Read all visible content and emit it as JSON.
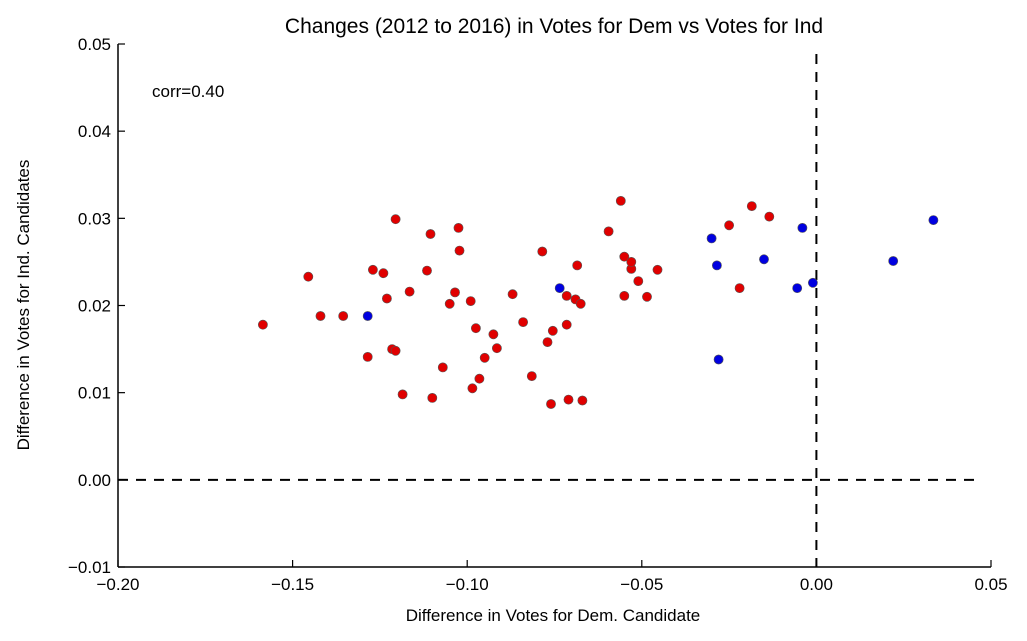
{
  "chart_data": {
    "type": "scatter",
    "title": "Changes (2012 to 2016) in Votes for Dem vs Votes for Ind",
    "xlabel": "Difference in Votes for Dem. Candidate",
    "ylabel": "Difference in Votes for Ind. Candidates",
    "xlim": [
      -0.2,
      0.05
    ],
    "ylim": [
      -0.01,
      0.05
    ],
    "xticks": [
      -0.2,
      -0.15,
      -0.1,
      -0.05,
      0.0,
      0.05
    ],
    "xtick_labels": [
      "−0.20",
      "−0.15",
      "−0.10",
      "−0.05",
      "0.00",
      "0.05"
    ],
    "yticks": [
      -0.01,
      0.0,
      0.01,
      0.02,
      0.03,
      0.04,
      0.05
    ],
    "ytick_labels": [
      "−0.01",
      "0.00",
      "0.01",
      "0.02",
      "0.03",
      "0.04",
      "0.05"
    ],
    "annotation": "corr=0.40",
    "reference_lines": {
      "x": 0.0,
      "y": 0.0,
      "style": "dashed"
    },
    "grid": false,
    "series": [
      {
        "color": "#e00000",
        "points": [
          [
            -0.1585,
            0.0178
          ],
          [
            -0.1455,
            0.0233
          ],
          [
            -0.142,
            0.0188
          ],
          [
            -0.1355,
            0.0188
          ],
          [
            -0.1285,
            0.0141
          ],
          [
            -0.127,
            0.0241
          ],
          [
            -0.124,
            0.0237
          ],
          [
            -0.123,
            0.0208
          ],
          [
            -0.1215,
            0.015
          ],
          [
            -0.1205,
            0.0299
          ],
          [
            -0.1205,
            0.0148
          ],
          [
            -0.1185,
            0.0098
          ],
          [
            -0.1165,
            0.0216
          ],
          [
            -0.1115,
            0.024
          ],
          [
            -0.1105,
            0.0282
          ],
          [
            -0.11,
            0.0094
          ],
          [
            -0.107,
            0.0129
          ],
          [
            -0.105,
            0.0202
          ],
          [
            -0.1035,
            0.0215
          ],
          [
            -0.1025,
            0.0289
          ],
          [
            -0.1022,
            0.0263
          ],
          [
            -0.099,
            0.0205
          ],
          [
            -0.0985,
            0.0105
          ],
          [
            -0.0975,
            0.0174
          ],
          [
            -0.0965,
            0.0116
          ],
          [
            -0.095,
            0.014
          ],
          [
            -0.0925,
            0.0167
          ],
          [
            -0.0915,
            0.0151
          ],
          [
            -0.087,
            0.0213
          ],
          [
            -0.084,
            0.0181
          ],
          [
            -0.0815,
            0.0119
          ],
          [
            -0.0785,
            0.0262
          ],
          [
            -0.077,
            0.0158
          ],
          [
            -0.076,
            0.0087
          ],
          [
            -0.0755,
            0.0171
          ],
          [
            -0.0715,
            0.0211
          ],
          [
            -0.0715,
            0.0178
          ],
          [
            -0.071,
            0.0092
          ],
          [
            -0.069,
            0.0207
          ],
          [
            -0.0685,
            0.0246
          ],
          [
            -0.0675,
            0.0202
          ],
          [
            -0.067,
            0.0091
          ],
          [
            -0.0595,
            0.0285
          ],
          [
            -0.056,
            0.032
          ],
          [
            -0.055,
            0.0256
          ],
          [
            -0.055,
            0.0211
          ],
          [
            -0.053,
            0.0242
          ],
          [
            -0.053,
            0.025
          ],
          [
            -0.051,
            0.0228
          ],
          [
            -0.0485,
            0.021
          ],
          [
            -0.0455,
            0.0241
          ],
          [
            -0.025,
            0.0292
          ],
          [
            -0.022,
            0.022
          ],
          [
            -0.0185,
            0.0314
          ],
          [
            -0.0135,
            0.0302
          ]
        ]
      },
      {
        "color": "#0000e0",
        "points": [
          [
            -0.1285,
            0.0188
          ],
          [
            -0.0735,
            0.022
          ],
          [
            -0.03,
            0.0277
          ],
          [
            -0.0285,
            0.0246
          ],
          [
            -0.028,
            0.0138
          ],
          [
            -0.015,
            0.0253
          ],
          [
            -0.0055,
            0.022
          ],
          [
            -0.004,
            0.0289
          ],
          [
            -0.001,
            0.0226
          ],
          [
            0.022,
            0.0251
          ],
          [
            0.0335,
            0.0298
          ]
        ]
      }
    ]
  }
}
